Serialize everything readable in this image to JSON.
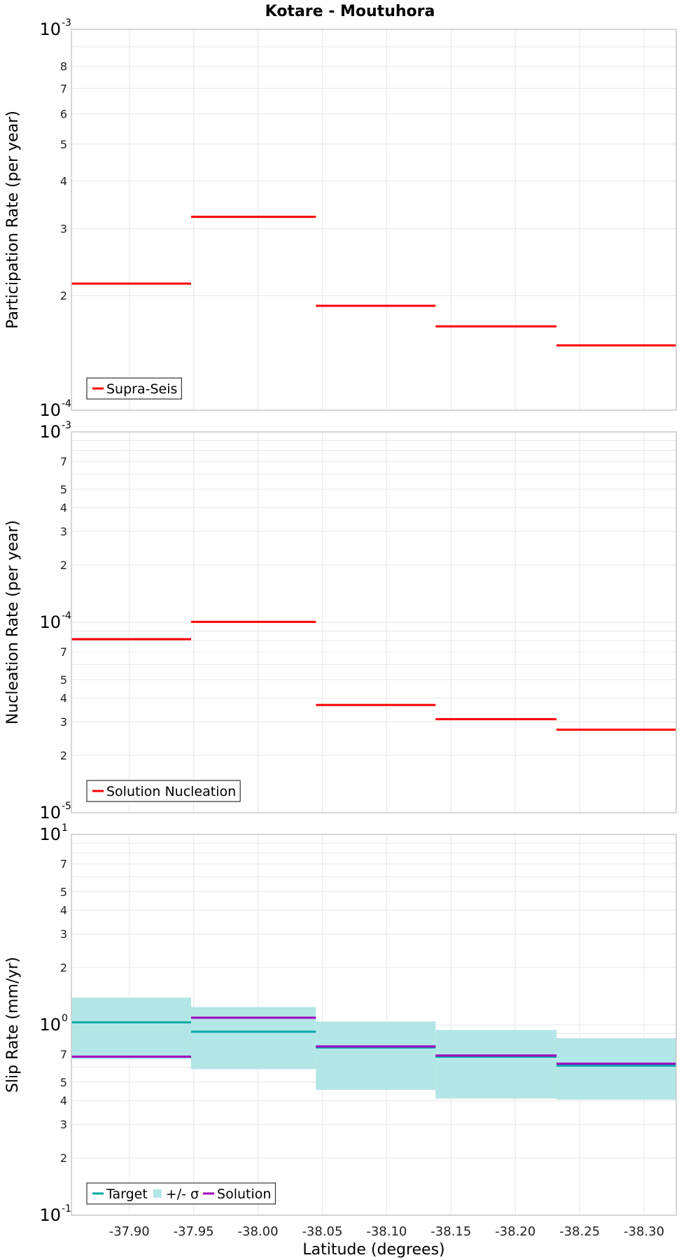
{
  "title": "Kotare - Moutuhora",
  "chart_data": [
    {
      "type": "line",
      "subtype": "step",
      "ylabel": "Participation Rate (per year)",
      "yscale": "log",
      "ylim": [
        0.0001,
        0.001
      ],
      "xlim": [
        -37.855,
        -38.325
      ],
      "decade_labels": [
        {
          "value": 0.0001,
          "base": "10",
          "exp": "-4"
        },
        {
          "value": 0.001,
          "base": "10",
          "exp": "-3"
        }
      ],
      "minor_ticks": [
        {
          "value": 0.0002,
          "label": "2"
        },
        {
          "value": 0.0003,
          "label": "3"
        },
        {
          "value": 0.0004,
          "label": "4"
        },
        {
          "value": 0.0005,
          "label": "5"
        },
        {
          "value": 0.0006,
          "label": "6"
        },
        {
          "value": 0.0007,
          "label": "7"
        },
        {
          "value": 0.0008,
          "label": "8"
        }
      ],
      "series": [
        {
          "name": "Supra-Seis",
          "color": "#ff0000",
          "segments": [
            {
              "x0": -37.855,
              "x1": -37.948,
              "y": 0.000215
            },
            {
              "x0": -37.948,
              "x1": -38.045,
              "y": 0.000322
            },
            {
              "x0": -38.045,
              "x1": -38.138,
              "y": 0.000188
            },
            {
              "x0": -38.138,
              "x1": -38.232,
              "y": 0.000166
            },
            {
              "x0": -38.232,
              "x1": -38.325,
              "y": 0.000148
            }
          ]
        }
      ],
      "legend": [
        {
          "name": "Supra-Seis",
          "kind": "line",
          "color": "#ff0000"
        }
      ]
    },
    {
      "type": "line",
      "subtype": "step",
      "ylabel": "Nucleation Rate (per year)",
      "yscale": "log",
      "ylim": [
        1e-05,
        0.001
      ],
      "xlim": [
        -37.855,
        -38.325
      ],
      "decade_labels": [
        {
          "value": 1e-05,
          "base": "10",
          "exp": "-5"
        },
        {
          "value": 0.0001,
          "base": "10",
          "exp": "-4"
        },
        {
          "value": 0.001,
          "base": "10",
          "exp": "-3"
        }
      ],
      "minor_ticks": [
        {
          "value": 2e-05,
          "label": "2"
        },
        {
          "value": 3e-05,
          "label": "3"
        },
        {
          "value": 4e-05,
          "label": "4"
        },
        {
          "value": 5e-05,
          "label": "5"
        },
        {
          "value": 7e-05,
          "label": "7"
        },
        {
          "value": 0.0002,
          "label": "2"
        },
        {
          "value": 0.0003,
          "label": "3"
        },
        {
          "value": 0.0004,
          "label": "4"
        },
        {
          "value": 0.0005,
          "label": "5"
        },
        {
          "value": 0.0007,
          "label": "7"
        }
      ],
      "series": [
        {
          "name": "Solution Nucleation",
          "color": "#ff0000",
          "segments": [
            {
              "x0": -37.855,
              "x1": -37.948,
              "y": 8.15e-05
            },
            {
              "x0": -37.948,
              "x1": -38.045,
              "y": 0.0001005
            },
            {
              "x0": -38.045,
              "x1": -38.138,
              "y": 3.68e-05
            },
            {
              "x0": -38.138,
              "x1": -38.232,
              "y": 3.1e-05
            },
            {
              "x0": -38.232,
              "x1": -38.325,
              "y": 2.73e-05
            }
          ]
        }
      ],
      "legend": [
        {
          "name": "Solution Nucleation",
          "kind": "line",
          "color": "#ff0000"
        }
      ]
    },
    {
      "type": "line",
      "subtype": "step",
      "ylabel": "Slip Rate (mm/yr)",
      "xlabel": "Latitude (degrees)",
      "yscale": "log",
      "ylim": [
        0.1,
        10
      ],
      "xlim": [
        -37.855,
        -38.325
      ],
      "decade_labels": [
        {
          "value": 0.1,
          "base": "10",
          "exp": "-1"
        },
        {
          "value": 1,
          "base": "10",
          "exp": "0"
        },
        {
          "value": 10,
          "base": "10",
          "exp": "1"
        }
      ],
      "minor_ticks": [
        {
          "value": 0.2,
          "label": "2"
        },
        {
          "value": 0.3,
          "label": "3"
        },
        {
          "value": 0.4,
          "label": "4"
        },
        {
          "value": 0.5,
          "label": "5"
        },
        {
          "value": 0.7,
          "label": "7"
        },
        {
          "value": 2,
          "label": "2"
        },
        {
          "value": 3,
          "label": "3"
        },
        {
          "value": 4,
          "label": "4"
        },
        {
          "value": 5,
          "label": "5"
        },
        {
          "value": 7,
          "label": "7"
        }
      ],
      "x_ticks": [
        {
          "value": -37.9,
          "label": "-37.90"
        },
        {
          "value": -37.95,
          "label": "-37.95"
        },
        {
          "value": -38.0,
          "label": "-38.00"
        },
        {
          "value": -38.05,
          "label": "-38.05"
        },
        {
          "value": -38.1,
          "label": "-38.10"
        },
        {
          "value": -38.15,
          "label": "-38.15"
        },
        {
          "value": -38.2,
          "label": "-38.20"
        },
        {
          "value": -38.25,
          "label": "-38.25"
        },
        {
          "value": -38.3,
          "label": "-38.30"
        }
      ],
      "bands": [
        {
          "name": "+/- σ",
          "color": "#b3e6e6",
          "segments": [
            {
              "x0": -37.855,
              "x1": -37.948,
              "low": 0.66,
              "high": 1.39
            },
            {
              "x0": -37.948,
              "x1": -38.045,
              "low": 0.585,
              "high": 1.24
            },
            {
              "x0": -38.045,
              "x1": -38.138,
              "low": 0.455,
              "high": 1.04
            },
            {
              "x0": -38.138,
              "x1": -38.232,
              "low": 0.41,
              "high": 0.94
            },
            {
              "x0": -38.232,
              "x1": -38.325,
              "low": 0.405,
              "high": 0.85
            }
          ]
        }
      ],
      "series": [
        {
          "name": "Target",
          "color": "#00a8a8",
          "segments": [
            {
              "x0": -37.855,
              "x1": -37.948,
              "y": 1.03
            },
            {
              "x0": -37.948,
              "x1": -38.045,
              "y": 0.92
            },
            {
              "x0": -38.045,
              "x1": -38.138,
              "y": 0.76
            },
            {
              "x0": -38.138,
              "x1": -38.232,
              "y": 0.68
            },
            {
              "x0": -38.232,
              "x1": -38.325,
              "y": 0.61
            }
          ]
        },
        {
          "name": "Solution",
          "color": "#a000c0",
          "segments": [
            {
              "x0": -37.855,
              "x1": -37.948,
              "y": 0.68
            },
            {
              "x0": -37.948,
              "x1": -38.045,
              "y": 1.09
            },
            {
              "x0": -38.045,
              "x1": -38.138,
              "y": 0.77
            },
            {
              "x0": -38.138,
              "x1": -38.232,
              "y": 0.69
            },
            {
              "x0": -38.232,
              "x1": -38.325,
              "y": 0.625
            }
          ]
        }
      ],
      "legend": [
        {
          "name": "Target",
          "kind": "line",
          "color": "#00a8a8"
        },
        {
          "name": "+/- σ",
          "kind": "box",
          "color": "#b3e6e6"
        },
        {
          "name": "Solution",
          "kind": "line",
          "color": "#a000c0"
        }
      ]
    }
  ]
}
